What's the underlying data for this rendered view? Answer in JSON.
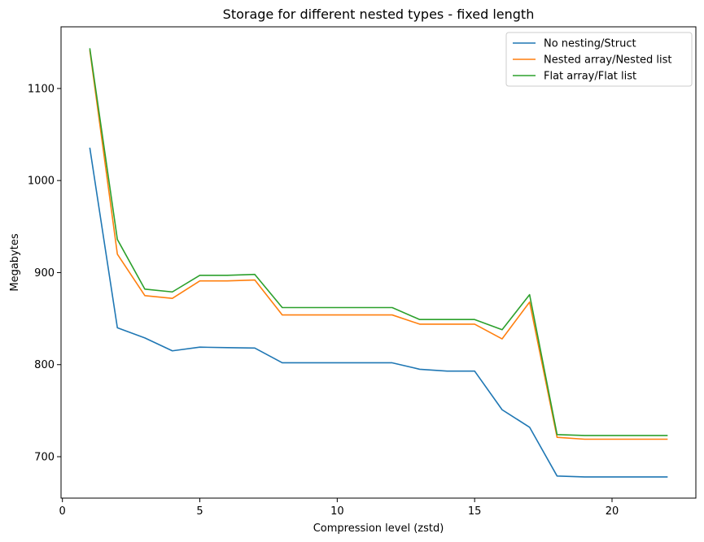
{
  "chart_data": {
    "type": "line",
    "title": "Storage for different nested types - fixed length",
    "xlabel": "Compression level (zstd)",
    "ylabel": "Megabytes",
    "xlim": [
      -0.05,
      23.05
    ],
    "ylim": [
      655,
      1167
    ],
    "xticks": [
      0,
      5,
      10,
      15,
      20
    ],
    "yticks": [
      700,
      800,
      900,
      1000,
      1100
    ],
    "grid": false,
    "legend_position": "top-right",
    "x": [
      1,
      2,
      3,
      4,
      5,
      6,
      7,
      8,
      9,
      10,
      11,
      12,
      13,
      14,
      15,
      16,
      17,
      18,
      19,
      20,
      21,
      22
    ],
    "series": [
      {
        "name": "No nesting/Struct",
        "color": "#1f77b4",
        "values": [
          1035,
          840,
          829,
          815,
          819,
          818.5,
          818,
          802,
          802,
          802,
          802,
          802,
          795,
          793,
          793,
          751,
          732,
          679,
          678,
          678,
          678,
          678
        ]
      },
      {
        "name": "Nested array/Nested list",
        "color": "#ff7f0e",
        "values": [
          1141,
          920,
          875,
          872,
          891,
          891,
          892,
          854,
          854,
          854,
          854,
          854,
          844,
          844,
          844,
          828,
          868,
          721,
          719,
          719,
          719,
          719
        ]
      },
      {
        "name": "Flat array/Flat list",
        "color": "#2ca02c",
        "values": [
          1143,
          936,
          882,
          879,
          897,
          897,
          898,
          862,
          862,
          862,
          862,
          862,
          849,
          849,
          849,
          838,
          876,
          724,
          723,
          723,
          723,
          723
        ]
      }
    ]
  }
}
